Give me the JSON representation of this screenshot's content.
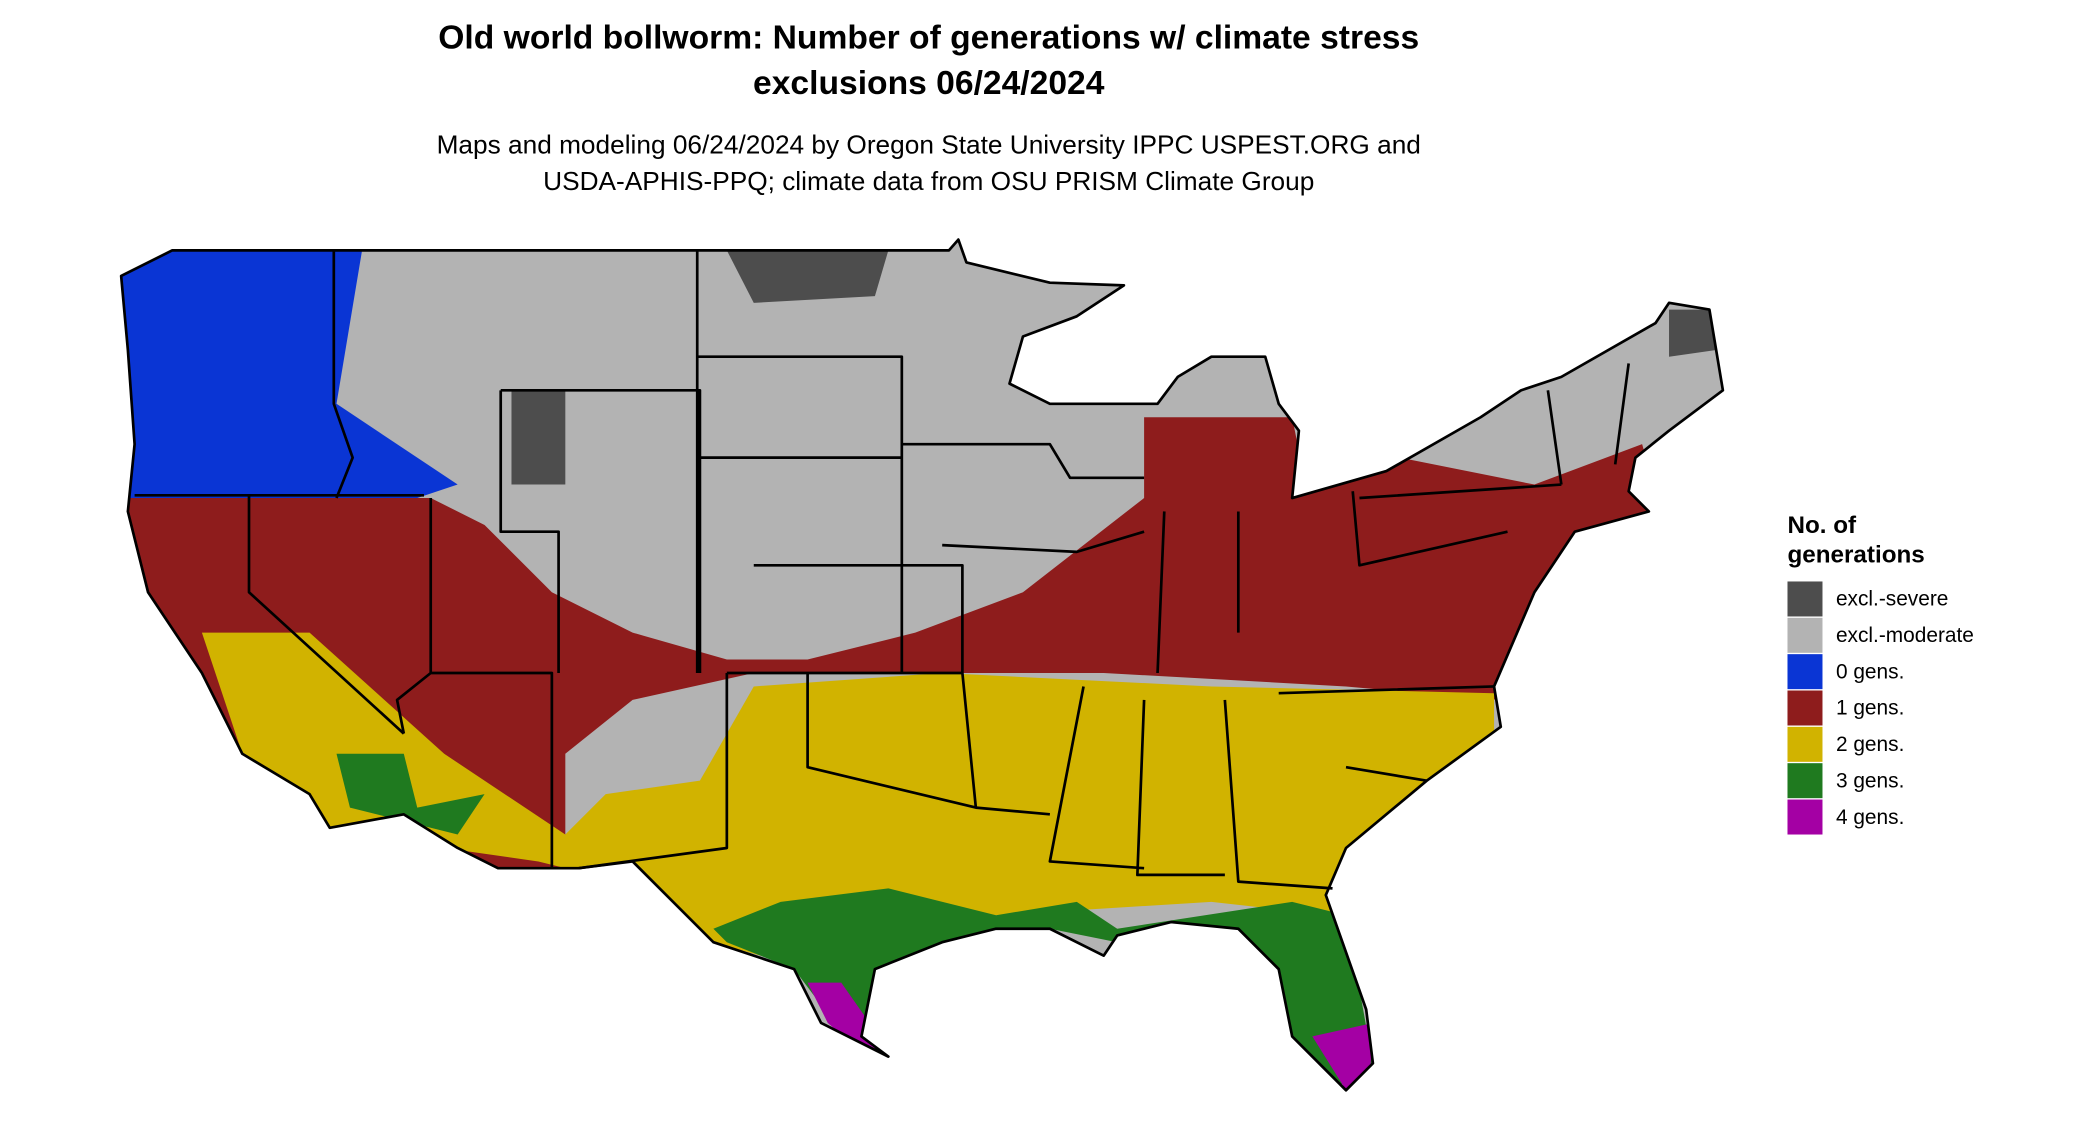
{
  "title": [
    "Old world bollworm: Number of generations w/ climate stress",
    "exclusions 06/24/2024"
  ],
  "subtitle": [
    "Maps and modeling 06/24/2024 by Oregon State University IPPC USPEST.ORG and",
    "USDA-APHIS-PPQ; climate data from OSU PRISM Climate Group"
  ],
  "legend": {
    "title": [
      "No. of",
      "generations"
    ],
    "items": [
      {
        "label": "excl.-severe",
        "color": "#4d4d4d"
      },
      {
        "label": "excl.-moderate",
        "color": "#b3b3b3"
      },
      {
        "label": "0 gens.",
        "color": "#0a35d4"
      },
      {
        "label": "1 gens.",
        "color": "#8e1c1c"
      },
      {
        "label": "2 gens.",
        "color": "#d1b300"
      },
      {
        "label": "3 gens.",
        "color": "#1f7a1f"
      },
      {
        "label": "4 gens.",
        "color": "#a400a4"
      }
    ]
  }
}
